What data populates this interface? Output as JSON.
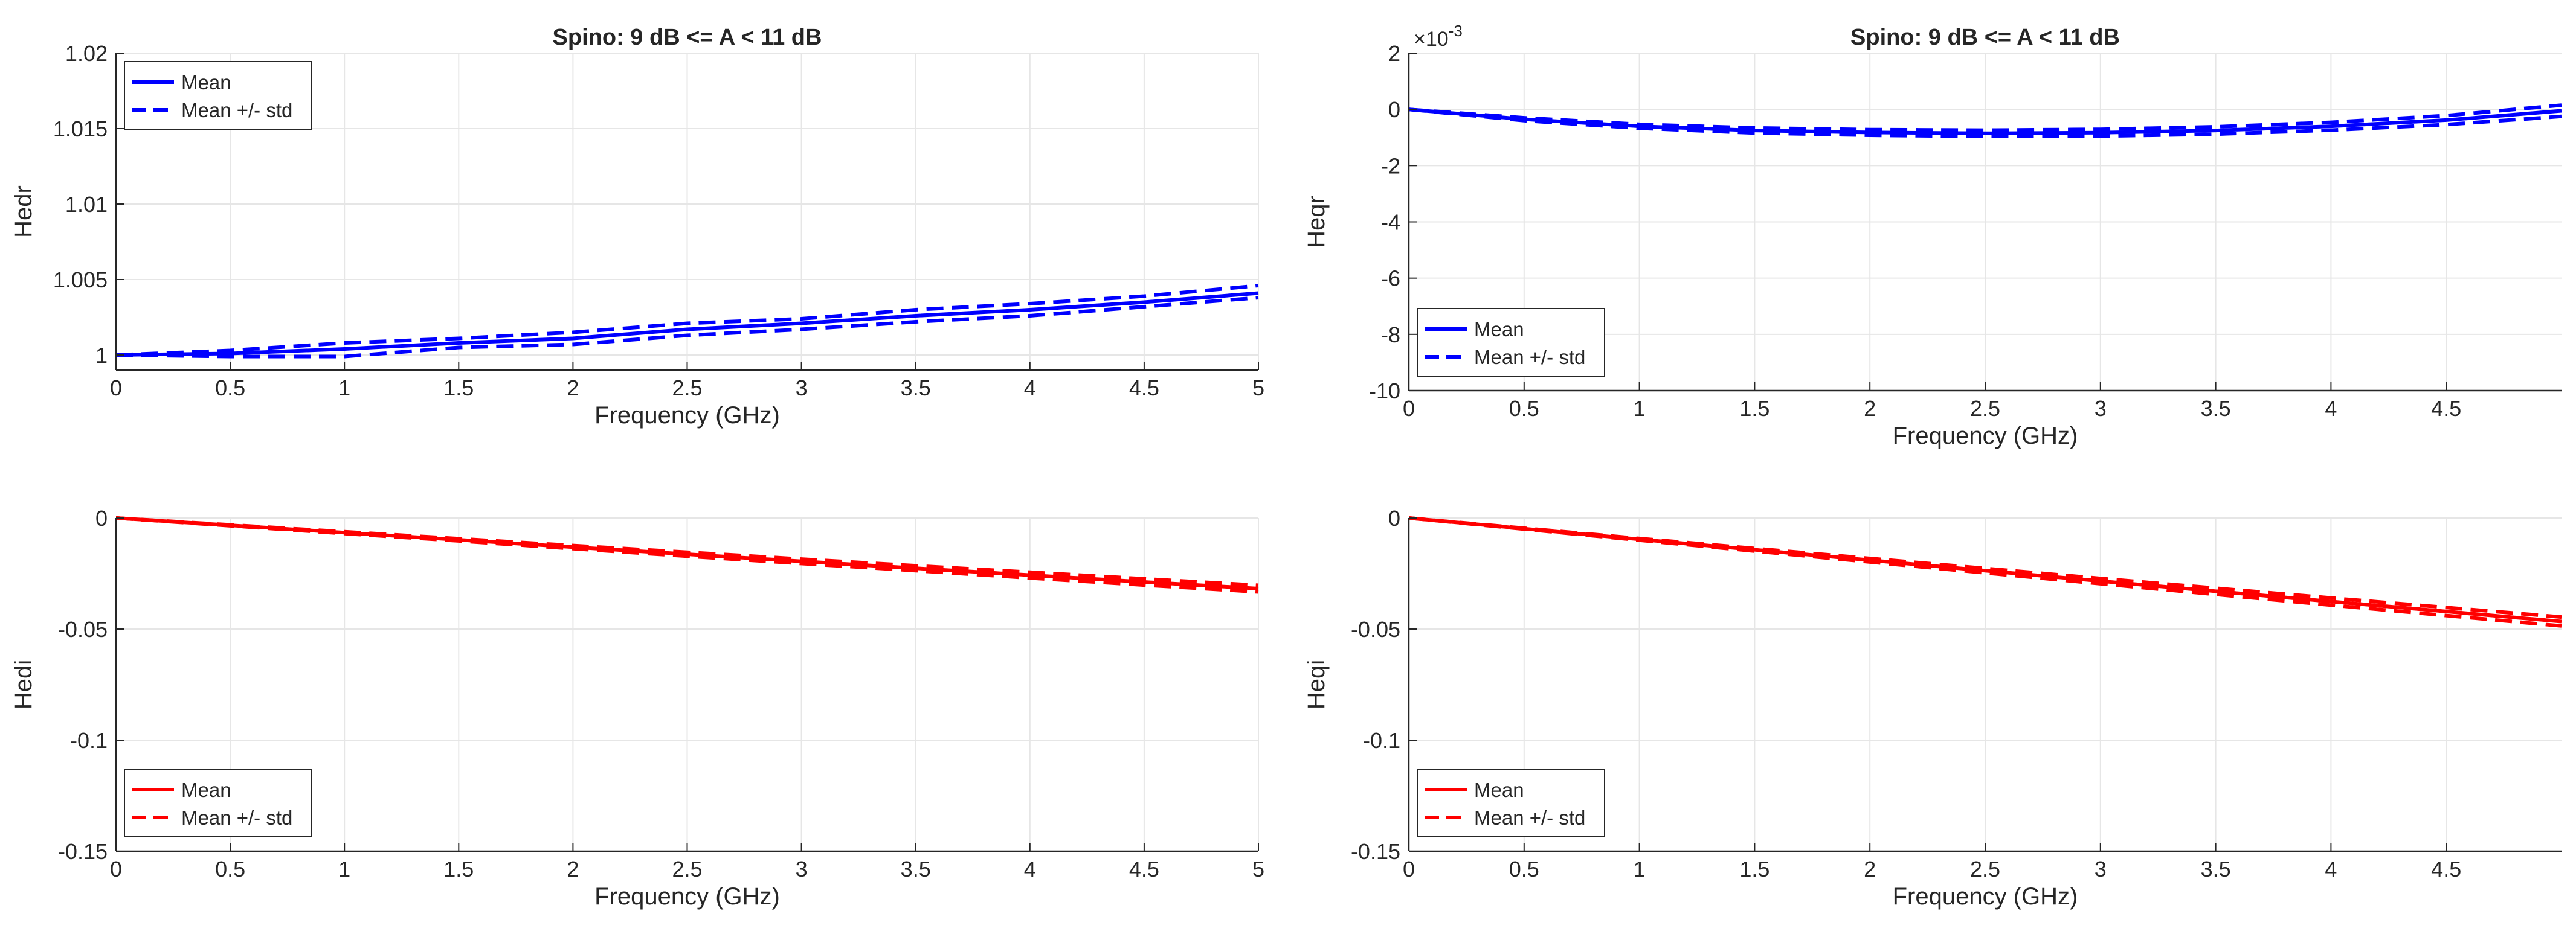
{
  "chart_data": [
    {
      "id": "tl",
      "type": "line",
      "title": "Spino: 9 dB <= A < 11 dB",
      "xlabel": "Frequency (GHz)",
      "ylabel": "Hedr",
      "xlim": [
        0,
        5
      ],
      "ylim": [
        0.999,
        1.02
      ],
      "xticks": [
        0,
        0.5,
        1,
        1.5,
        2,
        2.5,
        3,
        3.5,
        4,
        4.5,
        5
      ],
      "yticks": [
        1,
        1.005,
        1.01,
        1.015,
        1.02
      ],
      "ytick_labels": [
        "1",
        "1.005",
        "1.01",
        "1.015",
        "1.02"
      ],
      "exponent_label": "",
      "grid": true,
      "color": "#0000ff",
      "legend_position": "top-left",
      "legend": [
        "Mean",
        "Mean +/- std"
      ],
      "x": [
        0,
        0.5,
        1,
        1.5,
        2,
        2.5,
        3,
        3.5,
        4,
        4.5,
        5
      ],
      "series": [
        {
          "name": "Mean",
          "style": "solid",
          "values": [
            1.0,
            1.0001,
            1.0004,
            1.0008,
            1.0011,
            1.0017,
            1.0021,
            1.0026,
            1.003,
            1.0035,
            1.0041
          ]
        },
        {
          "name": "Mean + std",
          "style": "dashed",
          "values": [
            1.0,
            1.0003,
            1.0008,
            1.0011,
            1.0015,
            1.0021,
            1.0024,
            1.003,
            1.0034,
            1.0039,
            1.0046
          ]
        },
        {
          "name": "Mean - std",
          "style": "dashed",
          "values": [
            1.0,
            0.9999,
            0.9999,
            1.0005,
            1.0007,
            1.0013,
            1.0017,
            1.0022,
            1.0026,
            1.0032,
            1.0038
          ]
        }
      ]
    },
    {
      "id": "tr",
      "type": "line",
      "title": "Spino: 9 dB <= A < 11 dB",
      "xlabel": "Frequency (GHz)",
      "ylabel": "Heqr",
      "xlim": [
        0,
        5
      ],
      "ylim": [
        -10,
        2
      ],
      "xticks": [
        0,
        0.5,
        1,
        1.5,
        2,
        2.5,
        3,
        3.5,
        4,
        4.5
      ],
      "yticks": [
        -10,
        -8,
        -6,
        -4,
        -2,
        0,
        2
      ],
      "ytick_labels": [
        "-10",
        "-8",
        "-6",
        "-4",
        "-2",
        "0",
        "2"
      ],
      "exponent_label": "×10",
      "exponent_power": "-3",
      "grid": true,
      "color": "#0000ff",
      "legend_position": "bottom-left",
      "legend": [
        "Mean",
        "Mean +/- std"
      ],
      "x": [
        0,
        0.5,
        1,
        1.5,
        2,
        2.5,
        3,
        3.5,
        4,
        4.5,
        5
      ],
      "series": [
        {
          "name": "Mean",
          "style": "solid",
          "values": [
            0,
            -0.35,
            -0.6,
            -0.75,
            -0.82,
            -0.85,
            -0.83,
            -0.75,
            -0.6,
            -0.38,
            -0.05
          ]
        },
        {
          "name": "Mean + std",
          "style": "dashed",
          "values": [
            0,
            -0.3,
            -0.53,
            -0.66,
            -0.72,
            -0.74,
            -0.71,
            -0.62,
            -0.46,
            -0.22,
            0.15
          ]
        },
        {
          "name": "Mean - std",
          "style": "dashed",
          "values": [
            0,
            -0.4,
            -0.67,
            -0.84,
            -0.92,
            -0.96,
            -0.95,
            -0.88,
            -0.74,
            -0.54,
            -0.25
          ]
        }
      ]
    },
    {
      "id": "bl",
      "type": "line",
      "title": "",
      "xlabel": "Frequency (GHz)",
      "ylabel": "Hedi",
      "xlim": [
        0,
        5
      ],
      "ylim": [
        -0.15,
        0
      ],
      "xticks": [
        0,
        0.5,
        1,
        1.5,
        2,
        2.5,
        3,
        3.5,
        4,
        4.5,
        5
      ],
      "yticks": [
        -0.15,
        -0.1,
        -0.05,
        0
      ],
      "ytick_labels": [
        "-0.15",
        "-0.1",
        "-0.05",
        "0"
      ],
      "exponent_label": "",
      "grid": true,
      "color": "#ff0000",
      "legend_position": "bottom-left",
      "legend": [
        "Mean",
        "Mean +/- std"
      ],
      "x": [
        0,
        0.5,
        1,
        1.5,
        2,
        2.5,
        3,
        3.5,
        4,
        4.5,
        5
      ],
      "series": [
        {
          "name": "Mean",
          "style": "solid",
          "values": [
            0,
            -0.0033,
            -0.0066,
            -0.0098,
            -0.0131,
            -0.0163,
            -0.0195,
            -0.0226,
            -0.0257,
            -0.0288,
            -0.0318
          ]
        },
        {
          "name": "Mean + std",
          "style": "dashed",
          "values": [
            0,
            -0.0031,
            -0.0062,
            -0.0093,
            -0.0124,
            -0.0154,
            -0.0185,
            -0.0215,
            -0.0244,
            -0.0274,
            -0.0303
          ]
        },
        {
          "name": "Mean - std",
          "style": "dashed",
          "values": [
            0,
            -0.0035,
            -0.007,
            -0.0103,
            -0.0138,
            -0.0172,
            -0.0205,
            -0.0237,
            -0.027,
            -0.0302,
            -0.0333
          ]
        }
      ]
    },
    {
      "id": "br",
      "type": "line",
      "title": "",
      "xlabel": "Frequency (GHz)",
      "ylabel": "Heqi",
      "xlim": [
        0,
        5
      ],
      "ylim": [
        -0.15,
        0
      ],
      "xticks": [
        0,
        0.5,
        1,
        1.5,
        2,
        2.5,
        3,
        3.5,
        4,
        4.5
      ],
      "yticks": [
        -0.15,
        -0.1,
        -0.05,
        0
      ],
      "ytick_labels": [
        "-0.15",
        "-0.1",
        "-0.05",
        "0"
      ],
      "exponent_label": "",
      "grid": true,
      "color": "#ff0000",
      "legend_position": "bottom-left",
      "legend": [
        "Mean",
        "Mean +/- std"
      ],
      "x": [
        0,
        0.5,
        1,
        1.5,
        2,
        2.5,
        3,
        3.5,
        4,
        4.5,
        5
      ],
      "series": [
        {
          "name": "Mean",
          "style": "solid",
          "values": [
            0,
            -0.0048,
            -0.0096,
            -0.0143,
            -0.019,
            -0.0237,
            -0.0284,
            -0.033,
            -0.0376,
            -0.0421,
            -0.0466
          ]
        },
        {
          "name": "Mean + std",
          "style": "dashed",
          "values": [
            0,
            -0.0046,
            -0.0092,
            -0.0137,
            -0.0182,
            -0.0227,
            -0.0272,
            -0.0316,
            -0.036,
            -0.0403,
            -0.0446
          ]
        },
        {
          "name": "Mean - std",
          "style": "dashed",
          "values": [
            0,
            -0.005,
            -0.01,
            -0.0149,
            -0.0198,
            -0.0247,
            -0.0296,
            -0.0344,
            -0.0392,
            -0.0439,
            -0.0486
          ]
        }
      ]
    }
  ]
}
